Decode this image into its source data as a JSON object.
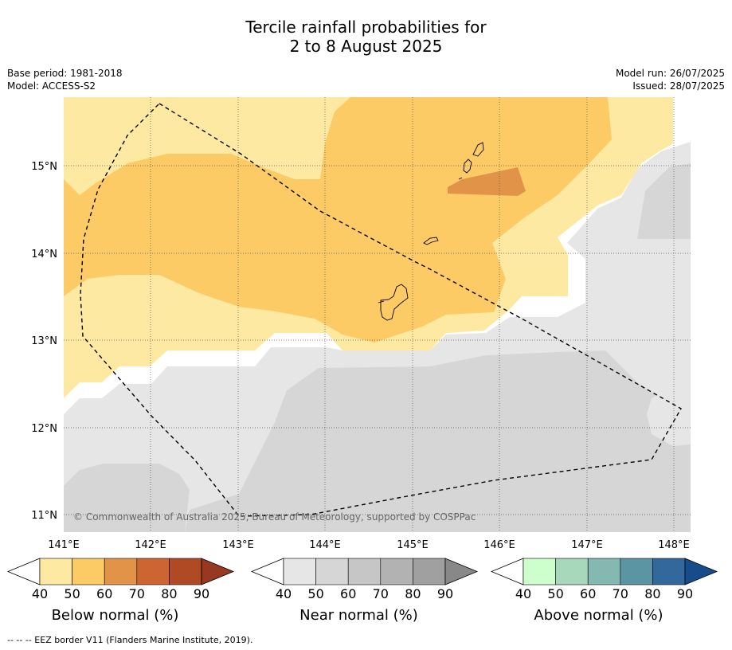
{
  "title_line1": "Tercile rainfall probabilities for",
  "title_line2": "2 to 8 August 2025",
  "meta": {
    "base_period": "Base period: 1981-2018",
    "model": "Model: ACCESS-S2",
    "model_run": "Model run: 26/07/2025",
    "issued": "Issued: 28/07/2025"
  },
  "map": {
    "lon_labels": [
      "141°E",
      "142°E",
      "143°E",
      "144°E",
      "145°E",
      "146°E",
      "147°E",
      "148°E"
    ],
    "lat_labels": [
      "15°N",
      "14°N",
      "13°N",
      "12°N",
      "11°N"
    ],
    "copyright": "© Commonwealth of Australia 2025, Bureau of Meteorology, supported by COSPPac"
  },
  "legends": [
    {
      "label": "Below normal (%)",
      "ticks": [
        "40",
        "50",
        "60",
        "70",
        "80",
        "90"
      ],
      "colors": [
        "#fee9a3",
        "#fdcb66",
        "#e19447",
        "#cd6532",
        "#b04a25",
        "#973821"
      ]
    },
    {
      "label": "Near normal (%)",
      "ticks": [
        "40",
        "50",
        "60",
        "70",
        "80",
        "90"
      ],
      "colors": [
        "#e6e6e6",
        "#d6d6d6",
        "#c6c6c6",
        "#b2b2b2",
        "#a0a0a0",
        "#888888"
      ]
    },
    {
      "label": "Above normal (%)",
      "ticks": [
        "40",
        "50",
        "60",
        "70",
        "80",
        "90"
      ],
      "colors": [
        "#ccffcc",
        "#a8d8bb",
        "#85b8b0",
        "#5b95a4",
        "#33689c",
        "#164c8c"
      ]
    }
  ],
  "footnote": "--  --  -- EEZ border V11 (Flanders Marine Institute, 2019)."
}
